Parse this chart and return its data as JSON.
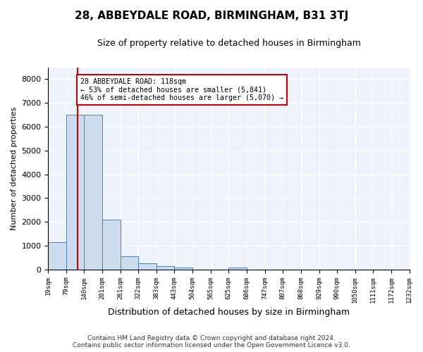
{
  "title": "28, ABBEYDALE ROAD, BIRMINGHAM, B31 3TJ",
  "subtitle": "Size of property relative to detached houses in Birmingham",
  "xlabel": "Distribution of detached houses by size in Birmingham",
  "ylabel": "Number of detached properties",
  "footer_line1": "Contains HM Land Registry data © Crown copyright and database right 2024.",
  "footer_line2": "Contains public sector information licensed under the Open Government Licence v3.0.",
  "bin_edges": [
    19,
    79,
    140,
    201,
    261,
    322,
    383,
    443,
    504,
    565,
    625,
    686,
    747,
    807,
    868,
    929,
    990,
    1050,
    1111,
    1172,
    1232
  ],
  "bar_heights": [
    1150,
    6500,
    6500,
    2100,
    550,
    270,
    130,
    80,
    0,
    0,
    80,
    0,
    0,
    0,
    0,
    0,
    0,
    0,
    0,
    0
  ],
  "bar_color": "#cdddf0",
  "bar_edge_color": "#5580b0",
  "property_size": 118,
  "property_size_label": "28 ABBEYDALE ROAD: 118sqm",
  "annotation_line1": "← 53% of detached houses are smaller (5,841)",
  "annotation_line2": "46% of semi-detached houses are larger (5,070) →",
  "vline_color": "#cc0000",
  "annotation_border_color": "#cc0000",
  "ylim": [
    0,
    8500
  ],
  "yticks": [
    0,
    1000,
    2000,
    3000,
    4000,
    5000,
    6000,
    7000,
    8000
  ],
  "bg_color": "#edf2fb",
  "grid_color": "#ffffff",
  "title_fontsize": 11,
  "subtitle_fontsize": 9,
  "ylabel_fontsize": 8,
  "xlabel_fontsize": 9
}
